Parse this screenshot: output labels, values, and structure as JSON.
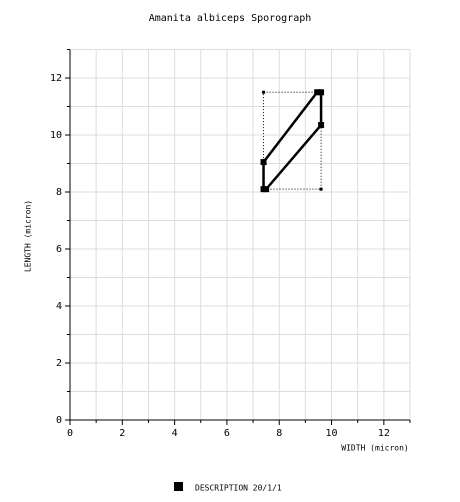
{
  "chart_data": {
    "type": "polygon",
    "title": "Amanita albiceps Sporograph",
    "x_label": "WIDTH (micron)",
    "y_label": "LENGTH (micron)",
    "xlim": [
      0,
      13
    ],
    "ylim": [
      0,
      13
    ],
    "xticks": [
      0,
      2,
      4,
      6,
      8,
      10,
      12
    ],
    "yticks": [
      0,
      2,
      4,
      6,
      8,
      10,
      12
    ],
    "minor_xticks": [
      1,
      3,
      5,
      7,
      9,
      11,
      13
    ],
    "minor_yticks": [
      1,
      3,
      5,
      7,
      9,
      11,
      13
    ],
    "grid": true,
    "series": [
      {
        "name": "DESCRIPTION 20/1/1",
        "color": "#000000",
        "x": [
          7.4,
          7.4,
          9.45,
          9.6,
          9.6,
          7.5
        ],
        "values": [
          8.1,
          9.05,
          11.5,
          11.5,
          10.35,
          8.1
        ]
      }
    ],
    "range_box": {
      "x": [
        7.4,
        9.6
      ],
      "y": [
        8.1,
        11.5
      ]
    }
  }
}
